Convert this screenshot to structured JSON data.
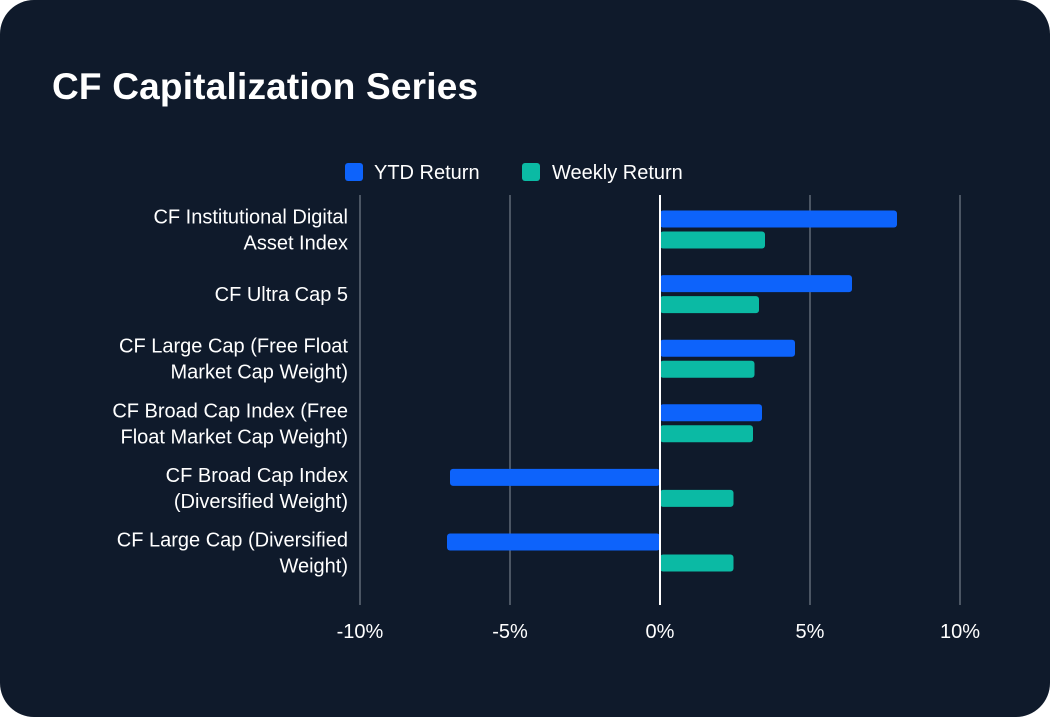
{
  "header": {
    "title": "CF Capitalization Series"
  },
  "chart_data": {
    "type": "bar",
    "orientation": "horizontal",
    "title": "CF Capitalization Series",
    "xlabel": "",
    "ylabel": "",
    "xlim": [
      -10,
      10
    ],
    "xticks": [
      -10,
      -5,
      0,
      5,
      10
    ],
    "tick_labels": [
      "-10%",
      "-5%",
      "0%",
      "5%",
      "10%"
    ],
    "grid": true,
    "legend_position": "top-center",
    "categories": [
      [
        "CF Institutional Digital",
        "Asset Index"
      ],
      [
        "CF Ultra Cap 5"
      ],
      [
        "CF Large Cap (Free Float",
        "Market Cap Weight)"
      ],
      [
        "CF Broad Cap Index (Free",
        "Float Market Cap Weight)"
      ],
      [
        "CF Broad Cap Index",
        "(Diversified Weight)"
      ],
      [
        "CF Large Cap (Diversified",
        "Weight)"
      ]
    ],
    "series": [
      {
        "name": "YTD Return",
        "color": "#0d63fb",
        "values": [
          7.9,
          6.4,
          4.5,
          3.4,
          -7.0,
          -7.1
        ]
      },
      {
        "name": "Weekly Return",
        "color": "#0bbaa4",
        "values": [
          3.5,
          3.3,
          3.15,
          3.1,
          2.45,
          2.45
        ]
      }
    ]
  },
  "colors": {
    "background": "#0f1a2b",
    "grid": "#4b5563",
    "zero_line": "#ffffff",
    "text": "#ffffff"
  }
}
